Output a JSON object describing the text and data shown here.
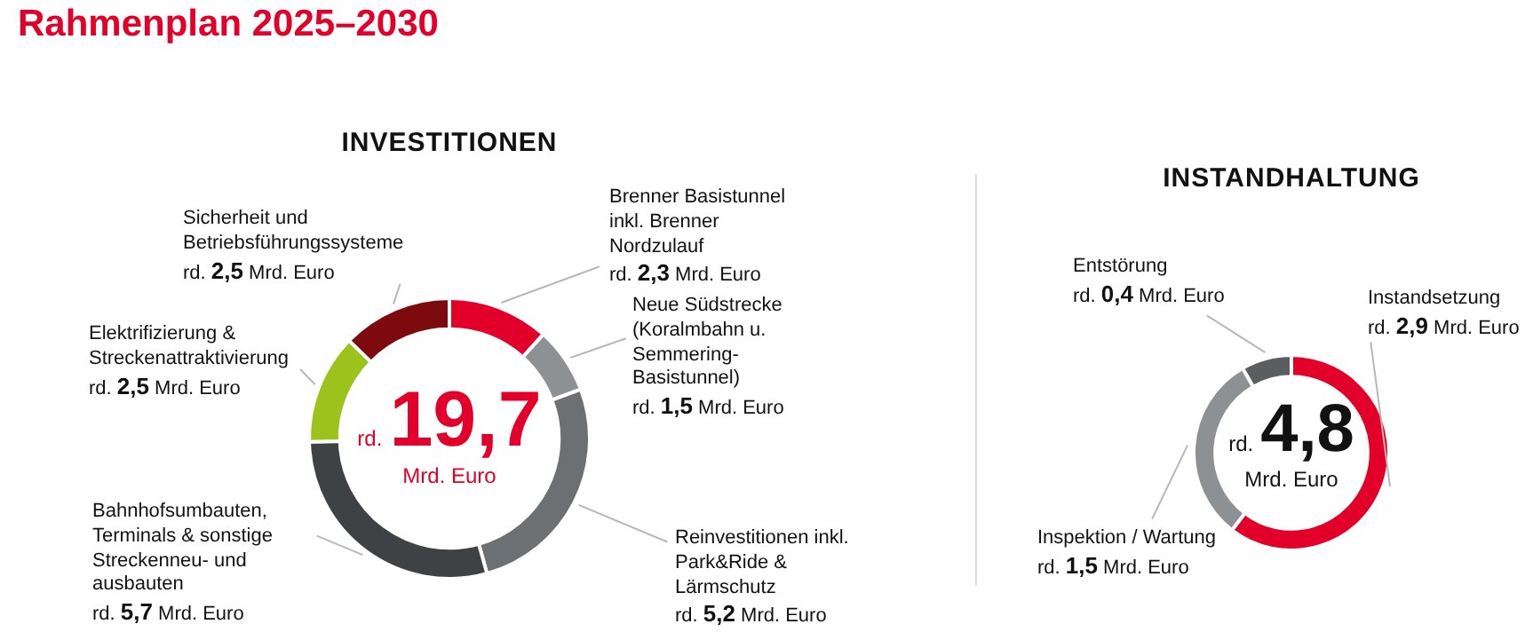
{
  "chart_data": [
    {
      "type": "donut",
      "title": "INVESTITIONEN",
      "annotations": [
        "Rahmenplan 2025–2030",
        "rd.",
        "19,7",
        "Mrd. Euro"
      ],
      "categories": [
        "Brenner Basistunnel inkl. Brenner Nordzulauf",
        "Neue Südstrecke (Koralmbahn u. Semmering-Basistunnel)",
        "Reinvestitionen inkl. Park&Ride & Lärmschutz",
        "Bahnhofsumbauten, Terminals & sonstige Streckenneu- und ausbauten",
        "Elektrifizierung & Streckenattraktivierung",
        "Sicherheit und Betriebsführungssysteme"
      ],
      "values": [
        2.3,
        1.5,
        5.2,
        5.7,
        2.5,
        2.5
      ],
      "colors": [
        "#e2002a",
        "#8e9194",
        "#6d7073",
        "#3f4245",
        "#9bc31c",
        "#7c0a0e"
      ],
      "value_labels": [
        "rd. 2,3 Mrd. Euro",
        "rd. 1,5 Mrd. Euro",
        "rd. 5,2 Mrd. Euro",
        "rd. 5,7 Mrd. Euro",
        "rd. 2,5 Mrd. Euro",
        "rd. 2,5 Mrd. Euro"
      ]
    },
    {
      "type": "donut",
      "title": "INSTANDHALTUNG",
      "annotations": [
        "rd.",
        "4,8",
        "Mrd. Euro"
      ],
      "categories": [
        "Instandsetzung",
        "Inspektion / Wartung",
        "Entstörung"
      ],
      "values": [
        2.9,
        1.5,
        0.4
      ],
      "colors": [
        "#e2002a",
        "#8e9194",
        "#5b5e61"
      ],
      "value_labels": [
        "rd. 2,9 Mrd. Euro",
        "rd. 1,5 Mrd. Euro",
        "rd. 0,4 Mrd. Euro"
      ]
    }
  ]
}
